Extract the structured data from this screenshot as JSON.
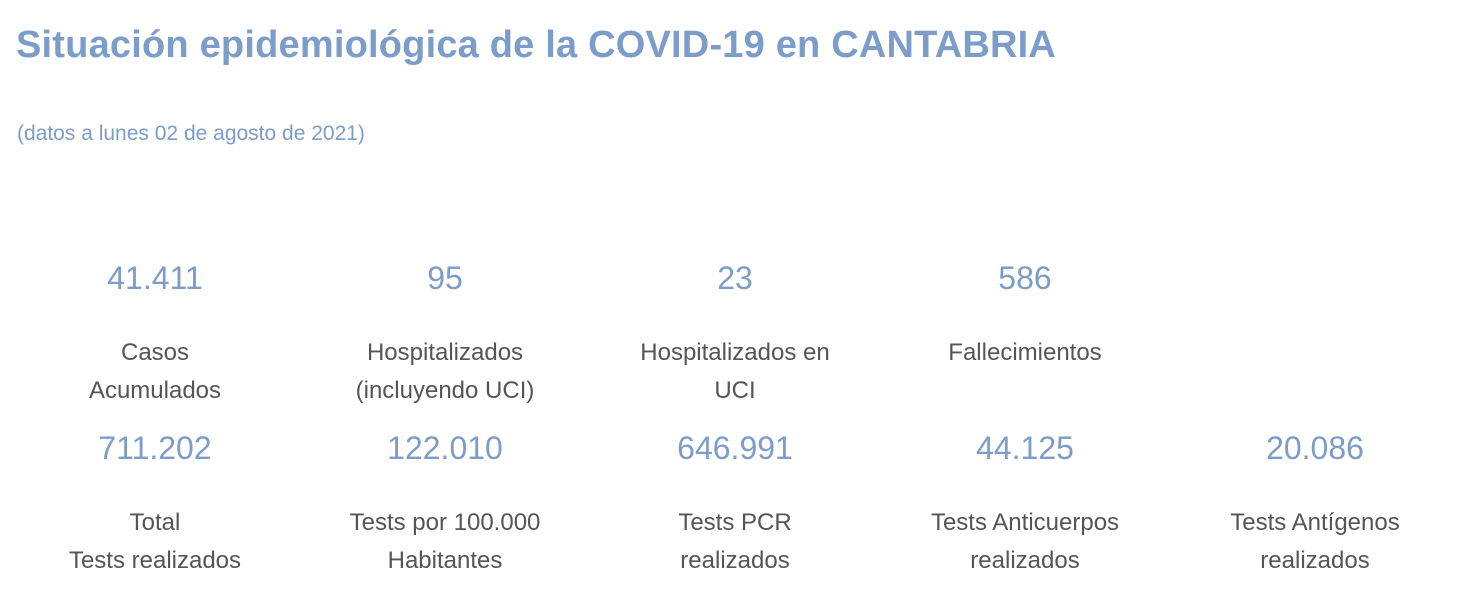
{
  "header": {
    "title": "Situación epidemiológica de la COVID-19 en CANTABRIA",
    "subtitle": "(datos a lunes 02 de agosto de 2021)"
  },
  "stats_row1": [
    {
      "value": "41.411",
      "label_line1": "Casos",
      "label_line2": "Acumulados"
    },
    {
      "value": "95",
      "label_line1": "Hospitalizados",
      "label_line2": "(incluyendo UCI)"
    },
    {
      "value": "23",
      "label_line1": "Hospitalizados en",
      "label_line2": "UCI"
    },
    {
      "value": "586",
      "label_line1": "Fallecimientos",
      "label_line2": ""
    }
  ],
  "stats_row2": [
    {
      "value": "711.202",
      "label_line1": "Total",
      "label_line2": "Tests realizados"
    },
    {
      "value": "122.010",
      "label_line1": "Tests por 100.000",
      "label_line2": "Habitantes"
    },
    {
      "value": "646.991",
      "label_line1": "Tests PCR",
      "label_line2": "realizados"
    },
    {
      "value": "44.125",
      "label_line1": "Tests Anticuerpos",
      "label_line2": "realizados"
    },
    {
      "value": "20.086",
      "label_line1": "Tests Antígenos",
      "label_line2": "realizados"
    }
  ],
  "colors": {
    "accent": "#7c9cc9",
    "label_text": "#555555",
    "background": "#ffffff"
  }
}
